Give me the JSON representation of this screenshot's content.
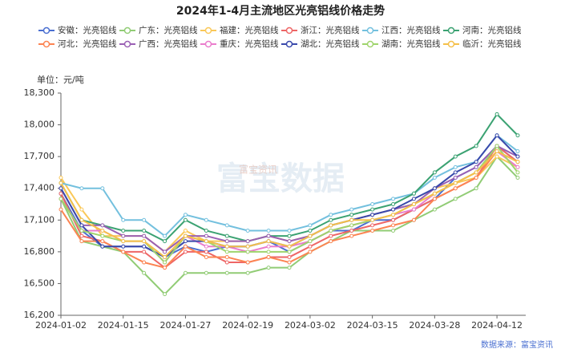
{
  "chart_data": {
    "type": "line",
    "title": "2024年1-4月主流地区光亮铝线价格走势",
    "unit_label": "单位：元/吨",
    "watermark": "富宝数据",
    "watermark_small": "富宝资讯",
    "source": "数据来源：富宝资讯",
    "categories": [
      "2024-01-02",
      null,
      null,
      "2024-01-15",
      null,
      null,
      "2024-01-27",
      null,
      null,
      "2024-02-19",
      null,
      null,
      "2024-03-02",
      null,
      null,
      "2024-03-15",
      null,
      null,
      "2024-03-28",
      null,
      null,
      "2024-04-12",
      null
    ],
    "ylim": [
      16200,
      18300
    ],
    "yticks": [
      {
        "value": 16200,
        "label": "16,200"
      },
      {
        "value": 16500,
        "label": "16,500"
      },
      {
        "value": 16800,
        "label": "16,800"
      },
      {
        "value": 17100,
        "label": "17,100"
      },
      {
        "value": 17400,
        "label": "17,400"
      },
      {
        "value": 17700,
        "label": "17,700"
      },
      {
        "value": 18000,
        "label": "18,000"
      },
      {
        "value": 18300,
        "label": "18,300"
      }
    ],
    "grid": false,
    "legend_position": "top",
    "series": [
      {
        "name": "安徽：光亮铝线",
        "color": "#4a6fd1",
        "values": [
          17350,
          17000,
          16850,
          16850,
          16850,
          16750,
          16850,
          16800,
          16850,
          16850,
          16900,
          16800,
          16900,
          17000,
          17000,
          17100,
          17100,
          17200,
          17300,
          17500,
          17600,
          17800,
          17650
        ]
      },
      {
        "name": "广东：光亮铝线",
        "color": "#91cc75",
        "values": [
          17300,
          16900,
          16850,
          16800,
          16600,
          16400,
          16600,
          16600,
          16600,
          16600,
          16650,
          16650,
          16800,
          16900,
          17000,
          17000,
          17000,
          17100,
          17200,
          17300,
          17400,
          17700,
          17500
        ]
      },
      {
        "name": "福建：光亮铝线",
        "color": "#fac858",
        "values": [
          17500,
          17200,
          16950,
          16950,
          16950,
          16800,
          17000,
          16900,
          16900,
          16900,
          16950,
          16900,
          16950,
          17050,
          17100,
          17150,
          17200,
          17250,
          17400,
          17450,
          17500,
          17700,
          17600
        ]
      },
      {
        "name": "浙江：光亮铝线",
        "color": "#ee6666",
        "values": [
          17350,
          16950,
          16900,
          16800,
          16800,
          16650,
          16800,
          16800,
          16700,
          16700,
          16750,
          16750,
          16850,
          16950,
          17000,
          17050,
          17100,
          17200,
          17300,
          17400,
          17500,
          17800,
          17650
        ]
      },
      {
        "name": "江西：光亮铝线",
        "color": "#73c0de",
        "values": [
          17450,
          17400,
          17400,
          17100,
          17100,
          16950,
          17150,
          17100,
          17050,
          17000,
          17000,
          17000,
          17050,
          17150,
          17200,
          17250,
          17300,
          17350,
          17500,
          17600,
          17650,
          17900,
          17750
        ]
      },
      {
        "name": "河南：光亮铝线",
        "color": "#3ba272",
        "values": [
          17450,
          17100,
          17050,
          17000,
          17000,
          16900,
          17100,
          17000,
          16950,
          16900,
          16950,
          16950,
          17000,
          17100,
          17150,
          17200,
          17250,
          17350,
          17550,
          17700,
          17800,
          18100,
          17900
        ]
      },
      {
        "name": "河北：光亮铝线",
        "color": "#fc8452",
        "values": [
          17200,
          16900,
          16900,
          16800,
          16700,
          16650,
          16850,
          16750,
          16750,
          16700,
          16750,
          16700,
          16800,
          16900,
          16950,
          17000,
          17050,
          17100,
          17300,
          17400,
          17500,
          17750,
          17650
        ]
      },
      {
        "name": "广西：光亮铝线",
        "color": "#9a60b4",
        "values": [
          17400,
          17050,
          17050,
          16950,
          16950,
          16800,
          16950,
          16950,
          16900,
          16900,
          16950,
          16900,
          16950,
          17050,
          17100,
          17150,
          17200,
          17250,
          17400,
          17500,
          17600,
          17800,
          17700
        ]
      },
      {
        "name": "重庆：光亮铝线",
        "color": "#ea7ccc",
        "values": [
          17300,
          17000,
          17000,
          16900,
          16900,
          16700,
          16950,
          16850,
          16850,
          16800,
          16850,
          16850,
          16900,
          17000,
          17050,
          17100,
          17150,
          17200,
          17350,
          17450,
          17550,
          17750,
          17600
        ]
      },
      {
        "name": "湖北：光亮铝线",
        "color": "#3949ab",
        "values": [
          17400,
          17050,
          16850,
          16850,
          16850,
          16750,
          16900,
          16900,
          16850,
          16850,
          16900,
          16850,
          16950,
          17050,
          17100,
          17150,
          17200,
          17300,
          17400,
          17550,
          17650,
          17900,
          17700
        ]
      },
      {
        "name": "湖南：光亮铝线",
        "color": "#9fd46c",
        "values": [
          17300,
          17000,
          16950,
          16900,
          16900,
          16700,
          16950,
          16900,
          16800,
          16800,
          16800,
          16800,
          16900,
          17000,
          17050,
          17100,
          17150,
          17250,
          17350,
          17450,
          17550,
          17800,
          17550
        ]
      },
      {
        "name": "临沂：光亮铝线",
        "color": "#f5c04a",
        "values": [
          17450,
          17100,
          17000,
          16900,
          16900,
          16750,
          16950,
          16900,
          16850,
          16850,
          16900,
          16850,
          16950,
          17050,
          17100,
          17100,
          17150,
          17250,
          17350,
          17450,
          17550,
          17750,
          17650
        ]
      }
    ]
  }
}
